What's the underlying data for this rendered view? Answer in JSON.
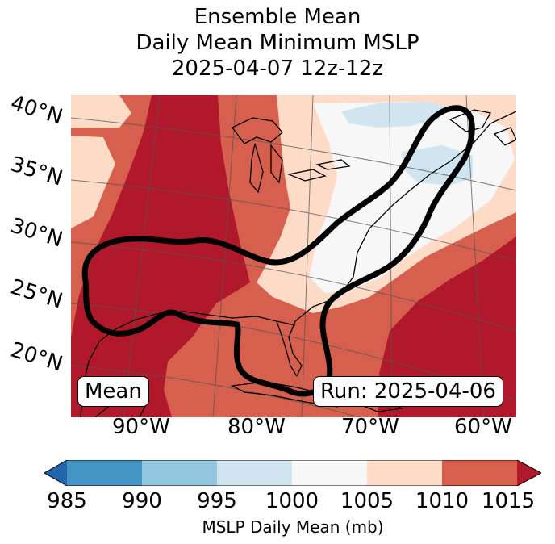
{
  "title": {
    "line1": "Ensemble Mean",
    "line2": "Daily Mean Minimum MSLP",
    "line3": "2025-04-07 12z-12z"
  },
  "map": {
    "lat_labels": [
      "40°N",
      "35°N",
      "30°N",
      "25°N",
      "20°N"
    ],
    "lon_labels": [
      "90°W",
      "80°W",
      "70°W",
      "60°W"
    ],
    "left_box": "Mean",
    "right_box": "Run: 2025-04-06"
  },
  "colorbar": {
    "ticks": [
      "985",
      "990",
      "995",
      "1000",
      "1005",
      "1010",
      "1015"
    ],
    "label": "MSLP Daily Mean (mb)",
    "colors": [
      "#2166ac",
      "#4393c3",
      "#92c5de",
      "#d1e5f0",
      "#f7f7f7",
      "#fddbc7",
      "#d6604d",
      "#b2182b"
    ]
  }
}
